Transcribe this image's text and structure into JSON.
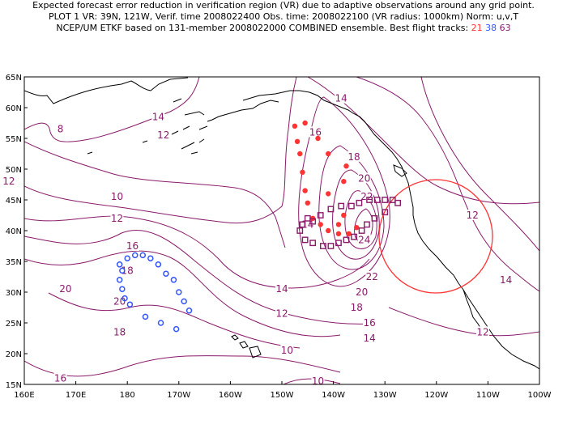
{
  "header": {
    "line1": "Expected forecast error reduction in verification region (VR) due to adaptive observations around any grid point.",
    "line2": "PLOT 1 VR: 39N, 121W, Verif. time 2008022400 Obs. time: 2008022100 (VR radius: 1000km) Norm: u,v,T",
    "line3_prefix": "NCEP/UM ETKF based on 131-member 2008022000 COMBINED ensemble.  Best flight tracks: ",
    "track_21": "21",
    "track_38": "38",
    "track_63": "63"
  },
  "axes": {
    "lat_labels": [
      "65N",
      "60N",
      "55N",
      "50N",
      "45N",
      "40N",
      "35N",
      "30N",
      "25N",
      "20N",
      "15N"
    ],
    "lon_labels": [
      "160E",
      "170E",
      "180",
      "170W",
      "160W",
      "150W",
      "140W",
      "130W",
      "120W",
      "110W",
      "100W"
    ]
  },
  "contour_labels": [
    {
      "text": "8",
      "lon": 167,
      "lat": 56.5
    },
    {
      "text": "14",
      "lon": 186,
      "lat": 58.5
    },
    {
      "text": "12",
      "lon": 187,
      "lat": 55.5
    },
    {
      "text": "12",
      "lon": 157,
      "lat": 48
    },
    {
      "text": "10",
      "lon": 178,
      "lat": 45.5
    },
    {
      "text": "12",
      "lon": 178,
      "lat": 42
    },
    {
      "text": "14",
      "lon": 215,
      "lat": 41
    },
    {
      "text": "16",
      "lon": 181,
      "lat": 37.5
    },
    {
      "text": "18",
      "lon": 180,
      "lat": 33.5
    },
    {
      "text": "20",
      "lon": 168,
      "lat": 30.5
    },
    {
      "text": "20",
      "lon": 178.5,
      "lat": 28.5
    },
    {
      "text": "18",
      "lon": 178.5,
      "lat": 23.5
    },
    {
      "text": "16",
      "lon": 167,
      "lat": 16
    },
    {
      "text": "16",
      "lon": 216.5,
      "lat": 56
    },
    {
      "text": "18",
      "lon": 224,
      "lat": 52
    },
    {
      "text": "20",
      "lon": 226,
      "lat": 48.5
    },
    {
      "text": "22",
      "lon": 226.5,
      "lat": 45.5
    },
    {
      "text": "24",
      "lon": 226,
      "lat": 38.5
    },
    {
      "text": "22",
      "lon": 227.5,
      "lat": 32.5
    },
    {
      "text": "20",
      "lon": 225.5,
      "lat": 30
    },
    {
      "text": "18",
      "lon": 224.5,
      "lat": 27.5
    },
    {
      "text": "16",
      "lon": 227,
      "lat": 25
    },
    {
      "text": "14",
      "lon": 210,
      "lat": 30.5
    },
    {
      "text": "12",
      "lon": 210,
      "lat": 26.5
    },
    {
      "text": "10",
      "lon": 211,
      "lat": 20.5
    },
    {
      "text": "14",
      "lon": 227,
      "lat": 22.5
    },
    {
      "text": "14",
      "lon": 221.5,
      "lat": 61.5
    },
    {
      "text": "12",
      "lon": 247,
      "lat": 42.5
    },
    {
      "text": "14",
      "lon": 253.5,
      "lat": 32
    },
    {
      "text": "12",
      "lon": 249,
      "lat": 23.5
    },
    {
      "text": "10",
      "lon": 217,
      "lat": 15.5
    }
  ],
  "flight_tracks": {
    "track_21": [
      [
        212.5,
        57
      ],
      [
        214.5,
        57.5
      ],
      [
        213,
        54.5
      ],
      [
        213.5,
        52.5
      ],
      [
        214,
        49.5
      ],
      [
        214.5,
        46.5
      ],
      [
        215,
        44.5
      ],
      [
        216,
        42
      ],
      [
        217.5,
        41
      ],
      [
        219,
        40
      ],
      [
        221,
        39.5
      ],
      [
        223,
        39.5
      ],
      [
        224.5,
        40.5
      ],
      [
        221,
        41
      ],
      [
        222,
        42.5
      ],
      [
        219,
        46
      ],
      [
        222,
        48
      ],
      [
        222.5,
        50.5
      ],
      [
        219,
        52.5
      ],
      [
        217,
        55
      ]
    ],
    "track_38": [
      [
        178.5,
        34.5
      ],
      [
        180,
        35.5
      ],
      [
        181.5,
        36
      ],
      [
        183,
        36
      ],
      [
        184.5,
        35.5
      ],
      [
        186,
        34.5
      ],
      [
        187.5,
        33
      ],
      [
        189,
        32
      ],
      [
        190,
        30
      ],
      [
        191,
        28.5
      ],
      [
        192,
        27
      ],
      [
        189.5,
        24
      ],
      [
        186.5,
        25
      ],
      [
        183.5,
        26
      ],
      [
        180.5,
        28
      ],
      [
        179.5,
        29
      ],
      [
        179,
        30.5
      ],
      [
        178.5,
        32
      ],
      [
        179,
        33.5
      ]
    ],
    "track_63": [
      [
        213.5,
        40
      ],
      [
        214,
        41
      ],
      [
        215,
        42
      ],
      [
        216,
        41.5
      ],
      [
        217.5,
        42.5
      ],
      [
        219.5,
        43.5
      ],
      [
        221.5,
        44
      ],
      [
        223.5,
        44
      ],
      [
        225,
        44.5
      ],
      [
        227,
        45
      ],
      [
        228.5,
        45
      ],
      [
        230,
        45
      ],
      [
        231.5,
        45
      ],
      [
        232.5,
        44.5
      ],
      [
        230,
        43
      ],
      [
        228,
        42
      ],
      [
        226.5,
        41
      ],
      [
        225.5,
        40
      ],
      [
        224,
        39
      ],
      [
        222.5,
        38.5
      ],
      [
        221,
        38
      ],
      [
        219.5,
        37.5
      ],
      [
        218,
        37.5
      ],
      [
        216,
        38
      ],
      [
        214.5,
        38.5
      ]
    ]
  },
  "verification_region": {
    "center_lat": 39,
    "center_lon": 239,
    "radius_km": 1000
  },
  "colors": {
    "contour": "#8a1a6a",
    "coast": "#000000",
    "track_21": "#ff3333",
    "track_38": "#3355ff",
    "track_63": "#8a1a6a",
    "vr_circle": "#ff3333"
  }
}
